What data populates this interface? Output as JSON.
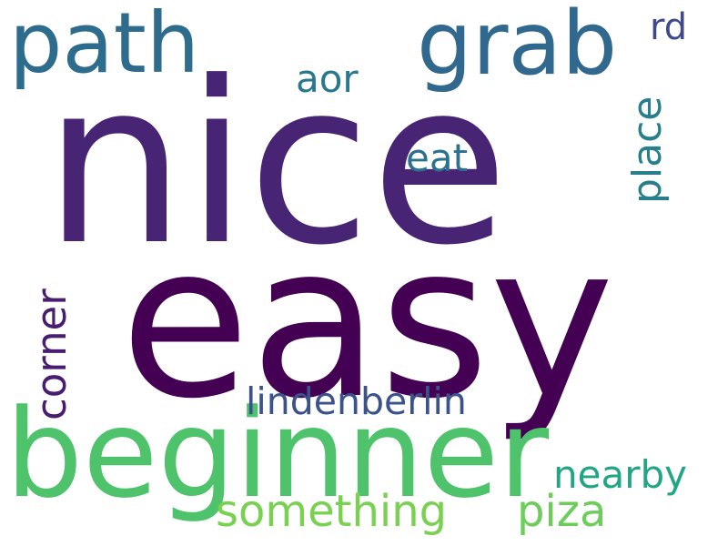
{
  "word_cloud": {
    "background": "#ffffff",
    "words": [
      {
        "key": "nice",
        "text": "nice",
        "color": "#482574",
        "orientation": "horizontal"
      },
      {
        "key": "easy",
        "text": "easy",
        "color": "#440154",
        "orientation": "horizontal"
      },
      {
        "key": "beginner",
        "text": "beginner",
        "color": "#4ec36b",
        "orientation": "horizontal"
      },
      {
        "key": "path",
        "text": "path",
        "color": "#2e6c8e",
        "orientation": "horizontal"
      },
      {
        "key": "grab",
        "text": "grab",
        "color": "#31688e",
        "orientation": "horizontal"
      },
      {
        "key": "lindenberlin",
        "text": "lindenberlin",
        "color": "#3b528b",
        "orientation": "horizontal"
      },
      {
        "key": "corner",
        "text": "corner",
        "color": "#481c6e",
        "orientation": "vertical"
      },
      {
        "key": "place",
        "text": "place",
        "color": "#277f8e",
        "orientation": "vertical"
      },
      {
        "key": "eat",
        "text": "eat",
        "color": "#2c728e",
        "orientation": "horizontal"
      },
      {
        "key": "aor",
        "text": "aor",
        "color": "#2a788e",
        "orientation": "horizontal"
      },
      {
        "key": "rd",
        "text": "rd",
        "color": "#3e4a89",
        "orientation": "horizontal"
      },
      {
        "key": "nearby",
        "text": "nearby",
        "color": "#21a685",
        "orientation": "horizontal"
      },
      {
        "key": "something",
        "text": "something",
        "color": "#7ad151",
        "orientation": "horizontal"
      },
      {
        "key": "piza",
        "text": "piza",
        "color": "#6ccd5a",
        "orientation": "horizontal"
      }
    ]
  }
}
